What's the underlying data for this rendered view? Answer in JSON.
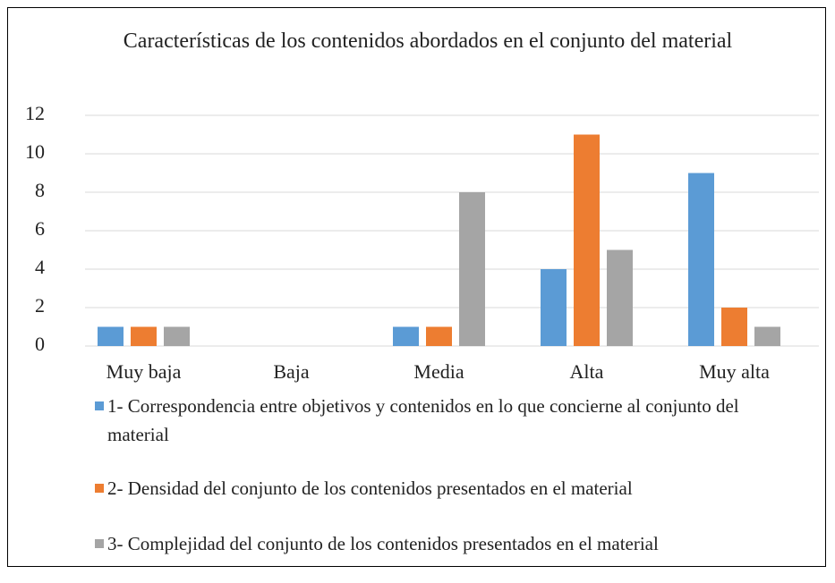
{
  "chart_data": {
    "type": "bar",
    "title": "Características de los contenidos abordados en el conjunto del material",
    "categories": [
      "Muy baja",
      "Baja",
      "Media",
      "Alta",
      "Muy alta"
    ],
    "series": [
      {
        "name": "1- Correspondencia entre objetivos y contenidos en lo que concierne al conjunto del material",
        "color": "#5b9bd5",
        "values": [
          1,
          0,
          1,
          4,
          9
        ]
      },
      {
        "name": "2- Densidad del conjunto de los contenidos presentados en el material",
        "color": "#ed7d31",
        "values": [
          1,
          0,
          1,
          11,
          2
        ]
      },
      {
        "name": "3- Complejidad del conjunto de los contenidos presentados en el material",
        "color": "#a5a5a5",
        "values": [
          1,
          0,
          8,
          5,
          1
        ]
      }
    ],
    "ylim": [
      0,
      12
    ],
    "yticks": [
      0,
      2,
      4,
      6,
      8,
      10,
      12
    ],
    "grid": true,
    "legend": "bottom"
  }
}
